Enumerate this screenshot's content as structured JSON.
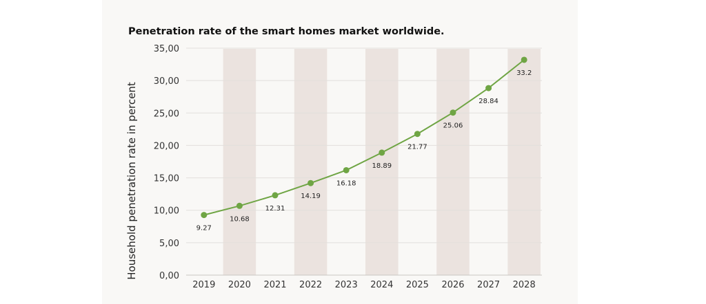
{
  "chart_data": {
    "type": "line",
    "title": "Penetration rate of the smart homes market worldwide.",
    "xlabel": "",
    "ylabel": "Household penetration rate in percent",
    "categories": [
      "2019",
      "2020",
      "2021",
      "2022",
      "2023",
      "2024",
      "2025",
      "2026",
      "2027",
      "2028"
    ],
    "values": [
      9.27,
      10.68,
      12.31,
      14.19,
      16.18,
      18.89,
      21.77,
      25.06,
      28.84,
      33.2
    ],
    "data_labels": [
      "9.27",
      "10.68",
      "12.31",
      "14.19",
      "16.18",
      "18.89",
      "21.77",
      "25.06",
      "28.84",
      "33.2"
    ],
    "ylim": [
      0,
      35
    ],
    "yticks": [
      "0,00",
      "5,00",
      "10,00",
      "15,00",
      "20,00",
      "25,00",
      "30,00",
      "35,00"
    ],
    "grid": true,
    "legend": "none",
    "colors": {
      "line": "#6fa544",
      "band": "#ebe3df",
      "background": "#f9f8f6",
      "grid": "#e2dfdc"
    }
  }
}
